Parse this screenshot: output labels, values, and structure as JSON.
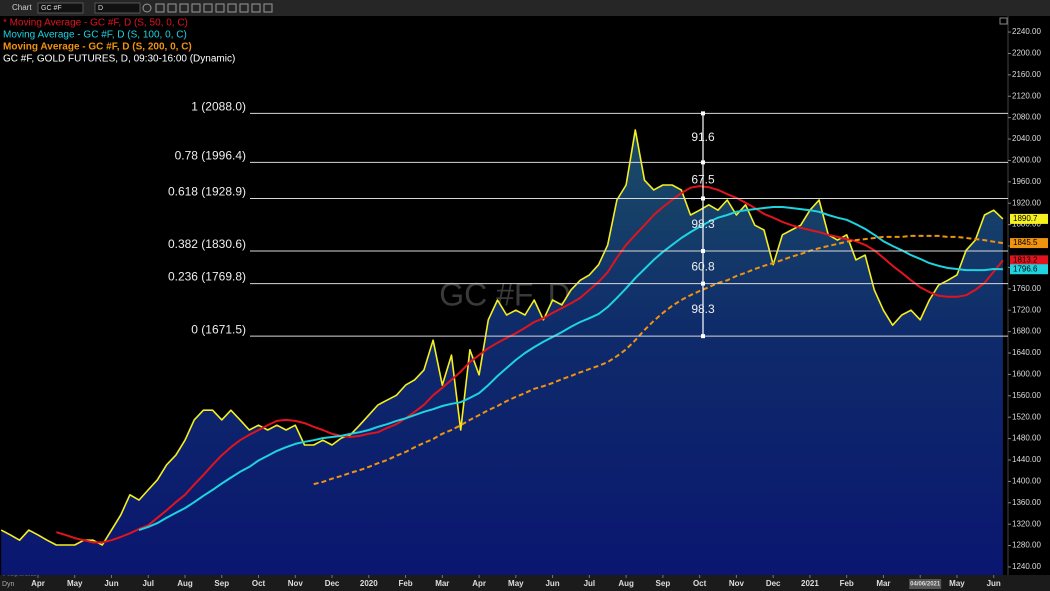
{
  "toolbar": {
    "window": "Chart",
    "symbol": "GC #F",
    "interval": "D"
  },
  "footer": {
    "copyright": "© eSignal 2021",
    "mode": "Dyn"
  },
  "chart_data": {
    "type": "line",
    "watermark": "GC #F, D",
    "categories": [
      null,
      null,
      null,
      null,
      "Apr",
      null,
      null,
      null,
      "May",
      null,
      null,
      null,
      "Jun",
      null,
      null,
      null,
      "Jul",
      null,
      null,
      null,
      "Aug",
      null,
      null,
      null,
      "Sep",
      null,
      null,
      null,
      "Oct",
      null,
      null,
      null,
      "Nov",
      null,
      null,
      null,
      "Dec",
      null,
      null,
      null,
      "2020",
      null,
      null,
      null,
      "Feb",
      null,
      null,
      null,
      "Mar",
      null,
      null,
      null,
      "Apr",
      null,
      null,
      null,
      "May",
      null,
      null,
      null,
      "Jun",
      null,
      null,
      null,
      "Jul",
      null,
      null,
      null,
      "Aug",
      null,
      null,
      null,
      "Sep",
      null,
      null,
      null,
      "Oct",
      null,
      null,
      null,
      "Nov",
      null,
      null,
      null,
      "Dec",
      null,
      null,
      null,
      "2021",
      null,
      null,
      null,
      "Feb",
      null,
      null,
      null,
      "Mar",
      null,
      null,
      null,
      "04/06/2021",
      null,
      null,
      null,
      "May",
      null,
      null,
      null,
      "Jun",
      null
    ],
    "series": [
      {
        "name": "* Moving Average - GC #F, D (S, 50, 0, C)",
        "color": "#e0141e",
        "values": [
          null,
          null,
          null,
          null,
          null,
          null,
          1305,
          1300,
          1294,
          1290,
          1286,
          1286,
          1290,
          1296,
          1303,
          1311,
          1318,
          1332,
          1346,
          1361,
          1375,
          1394,
          1412,
          1431,
          1449,
          1464,
          1477,
          1487,
          1496,
          1505,
          1513,
          1515,
          1513,
          1509,
          1502,
          1496,
          1489,
          1485,
          1483,
          1485,
          1489,
          1492,
          1500,
          1507,
          1518,
          1530,
          1543,
          1561,
          1575,
          1590,
          1605,
          1623,
          1636,
          1649,
          1659,
          1668,
          1677,
          1687,
          1698,
          1705,
          1715,
          1724,
          1733,
          1743,
          1758,
          1773,
          1791,
          1818,
          1842,
          1861,
          1879,
          1898,
          1913,
          1926,
          1939,
          1949,
          1952,
          1950,
          1945,
          1937,
          1930,
          1921,
          1911,
          1900,
          1893,
          1885,
          1879,
          1874,
          1870,
          1866,
          1861,
          1857,
          1853,
          1849,
          1842,
          1832,
          1818,
          1803,
          1790,
          1776,
          1763,
          1754,
          1747,
          1745,
          1745,
          1748,
          1758,
          1771,
          1792,
          1813.2
        ]
      },
      {
        "name": "Moving Average - GC #F, D (S, 100, 0, C)",
        "color": "#1fd3e0",
        "values": [
          null,
          null,
          null,
          null,
          null,
          null,
          null,
          null,
          null,
          null,
          null,
          null,
          null,
          null,
          null,
          1309,
          1315,
          1322,
          1332,
          1341,
          1350,
          1361,
          1373,
          1384,
          1396,
          1407,
          1418,
          1427,
          1439,
          1448,
          1457,
          1464,
          1470,
          1474,
          1477,
          1481,
          1483,
          1485,
          1489,
          1492,
          1496,
          1502,
          1507,
          1513,
          1518,
          1524,
          1530,
          1535,
          1541,
          1545,
          1548,
          1556,
          1565,
          1580,
          1597,
          1612,
          1627,
          1640,
          1651,
          1661,
          1670,
          1679,
          1689,
          1698,
          1705,
          1713,
          1726,
          1743,
          1761,
          1780,
          1797,
          1814,
          1829,
          1842,
          1855,
          1866,
          1876,
          1885,
          1893,
          1898,
          1904,
          1907,
          1909,
          1911,
          1913,
          1913,
          1911,
          1909,
          1907,
          1904,
          1898,
          1893,
          1889,
          1881,
          1872,
          1861,
          1849,
          1840,
          1832,
          1823,
          1816,
          1808,
          1803,
          1799,
          1797,
          1795,
          1795,
          1795,
          1797,
          1796.6
        ]
      },
      {
        "name": "Moving Average - GC #F, D (S, 200, 0, C)",
        "color": "#f0930e",
        "dashed": true,
        "values": [
          null,
          null,
          null,
          null,
          null,
          null,
          null,
          null,
          null,
          null,
          null,
          null,
          null,
          null,
          null,
          null,
          null,
          null,
          null,
          null,
          null,
          null,
          null,
          null,
          null,
          null,
          null,
          null,
          null,
          null,
          null,
          null,
          null,
          null,
          1395,
          1399,
          1405,
          1410,
          1416,
          1421,
          1427,
          1434,
          1440,
          1448,
          1455,
          1464,
          1472,
          1479,
          1489,
          1496,
          1505,
          1515,
          1524,
          1533,
          1541,
          1550,
          1558,
          1565,
          1573,
          1578,
          1584,
          1591,
          1597,
          1604,
          1610,
          1616,
          1623,
          1634,
          1647,
          1664,
          1683,
          1700,
          1715,
          1728,
          1739,
          1748,
          1756,
          1763,
          1771,
          1776,
          1784,
          1790,
          1797,
          1803,
          1808,
          1814,
          1820,
          1825,
          1831,
          1836,
          1840,
          1844,
          1848,
          1851,
          1853,
          1855,
          1857,
          1857,
          1857,
          1859,
          1859,
          1859,
          1859,
          1857,
          1857,
          1855,
          1853,
          1851,
          1848,
          1845.5
        ]
      },
      {
        "name": "GC #F, GOLD FUTURES, D, 09:30-16:00 (Dynamic)",
        "color": "#f5f01e",
        "area": true,
        "values": [
          1309,
          1300,
          1290,
          1309,
          1300,
          1290,
          1281,
          1281,
          1281,
          1290,
          1290,
          1281,
          1309,
          1337,
          1375,
          1365,
          1384,
          1403,
          1431,
          1449,
          1477,
          1515,
          1533,
          1533,
          1515,
          1533,
          1515,
          1496,
          1505,
          1496,
          1505,
          1496,
          1505,
          1468,
          1468,
          1477,
          1468,
          1481,
          1487,
          1505,
          1524,
          1543,
          1552,
          1561,
          1580,
          1590,
          1608,
          1664,
          1580,
          1636,
          1496,
          1646,
          1599,
          1702,
          1739,
          1711,
          1720,
          1711,
          1739,
          1702,
          1739,
          1730,
          1758,
          1776,
          1786,
          1805,
          1842,
          1926,
          1954,
          2057,
          1963,
          1945,
          1954,
          1954,
          1945,
          1898,
          1907,
          1917,
          1907,
          1926,
          1898,
          1917,
          1879,
          1870,
          1805,
          1861,
          1870,
          1879,
          1907,
          1926,
          1861,
          1851,
          1861,
          1814,
          1823,
          1758,
          1720,
          1692,
          1711,
          1720,
          1702,
          1739,
          1767,
          1776,
          1786,
          1832,
          1851,
          1898,
          1907,
          1890.7
        ]
      }
    ],
    "ylim": [
      1225,
      2270
    ],
    "yticks": [
      {
        "value": 2240,
        "label": "2240.00"
      },
      {
        "value": 2200,
        "label": "2200.00"
      },
      {
        "value": 2160,
        "label": "2160.00"
      },
      {
        "value": 2120,
        "label": "2120.00"
      },
      {
        "value": 2080,
        "label": "2080.00"
      },
      {
        "value": 2040,
        "label": "2040.00"
      },
      {
        "value": 2000,
        "label": "2000.00"
      },
      {
        "value": 1960,
        "label": "1960.00"
      },
      {
        "value": 1920,
        "label": "1920.00"
      },
      {
        "value": 1880,
        "label": "1880.00"
      },
      {
        "value": 1840,
        "label": "1840.00"
      },
      {
        "value": 1800,
        "label": "1800.00"
      },
      {
        "value": 1760,
        "label": "1760.00"
      },
      {
        "value": 1720,
        "label": "1720.00"
      },
      {
        "value": 1680,
        "label": "1680.00"
      },
      {
        "value": 1640,
        "label": "1640.00"
      },
      {
        "value": 1600,
        "label": "1600.00"
      },
      {
        "value": 1560,
        "label": "1560.00"
      },
      {
        "value": 1520,
        "label": "1520.00"
      },
      {
        "value": 1480,
        "label": "1480.00"
      },
      {
        "value": 1440,
        "label": "1440.00"
      },
      {
        "value": 1400,
        "label": "1400.00"
      },
      {
        "value": 1360,
        "label": "1360.00"
      },
      {
        "value": 1320,
        "label": "1320.00"
      },
      {
        "value": 1280,
        "label": "1280.00"
      },
      {
        "value": 1240,
        "label": "1240.00"
      }
    ],
    "fib_levels": [
      {
        "value": 2088.0,
        "label": "1 (2088.0)"
      },
      {
        "value": 1996.4,
        "label": "0.78 (1996.4)"
      },
      {
        "value": 1928.9,
        "label": "0.618 (1928.9)"
      },
      {
        "value": 1830.6,
        "label": "0.382 (1830.6)"
      },
      {
        "value": 1769.8,
        "label": "0.236 (1769.8)"
      },
      {
        "value": 1671.5,
        "label": "0 (1671.5)"
      }
    ],
    "fib_differences": [
      91.6,
      67.5,
      98.3,
      60.8,
      98.3
    ]
  }
}
